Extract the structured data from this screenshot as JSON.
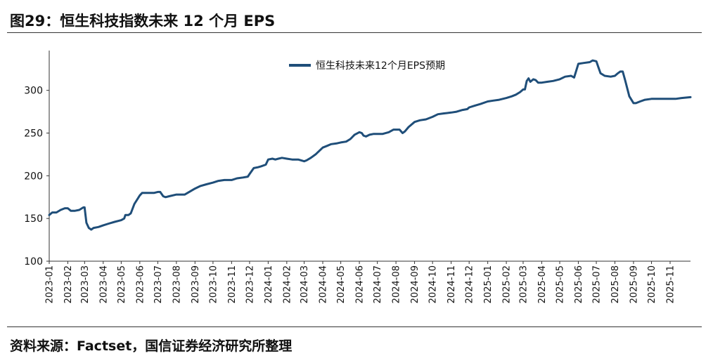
{
  "header": {
    "title": "图29：恒生科技指数未来 12 个月 EPS"
  },
  "footer": {
    "source": "资料来源：Factset，国信证券经济研究所整理"
  },
  "chart_data": {
    "type": "line",
    "title": "",
    "xlabel": "",
    "ylabel": "",
    "ylim": [
      100,
      340
    ],
    "yticks": [
      100,
      150,
      200,
      250,
      300
    ],
    "x_tick_labels": [
      "2023-01",
      "2023-02",
      "2023-03",
      "2023-04",
      "2023-05",
      "2023-06",
      "2023-07",
      "2023-08",
      "2023-09",
      "2023-10",
      "2023-11",
      "2023-12",
      "2024-01",
      "2024-02",
      "2024-03",
      "2024-04",
      "2024-05",
      "2024-06",
      "2024-07",
      "2024-08",
      "2024-09",
      "2024-10",
      "2024-11",
      "2024-12",
      "2025-01",
      "2025-02",
      "2025-03",
      "2025-04",
      "2025-05",
      "2025-06",
      "2025-07",
      "2025-08",
      "2025-09",
      "2025-10",
      "2025-11"
    ],
    "legend_position": "top-center",
    "grid": false,
    "series": [
      {
        "name": "恒生科技未来12个月EPS预期",
        "color": "#1f4e79",
        "points": [
          [
            "2023-01-01",
            154
          ],
          [
            "2023-01-06",
            157
          ],
          [
            "2023-01-13",
            157
          ],
          [
            "2023-01-20",
            160
          ],
          [
            "2023-01-27",
            162
          ],
          [
            "2023-02-01",
            162
          ],
          [
            "2023-02-06",
            159
          ],
          [
            "2023-02-13",
            159
          ],
          [
            "2023-02-20",
            160
          ],
          [
            "2023-02-27",
            163
          ],
          [
            "2023-03-01",
            163
          ],
          [
            "2023-03-04",
            145
          ],
          [
            "2023-03-08",
            139
          ],
          [
            "2023-03-12",
            137
          ],
          [
            "2023-03-16",
            139
          ],
          [
            "2023-03-24",
            140
          ],
          [
            "2023-04-01",
            142
          ],
          [
            "2023-04-10",
            144
          ],
          [
            "2023-04-20",
            146
          ],
          [
            "2023-05-01",
            148
          ],
          [
            "2023-05-06",
            150
          ],
          [
            "2023-05-08",
            154
          ],
          [
            "2023-05-13",
            154
          ],
          [
            "2023-05-17",
            156
          ],
          [
            "2023-05-23",
            167
          ],
          [
            "2023-06-01",
            177
          ],
          [
            "2023-06-05",
            180
          ],
          [
            "2023-06-15",
            180
          ],
          [
            "2023-06-25",
            180
          ],
          [
            "2023-07-01",
            181
          ],
          [
            "2023-07-05",
            181
          ],
          [
            "2023-07-10",
            176
          ],
          [
            "2023-07-14",
            175
          ],
          [
            "2023-07-20",
            176
          ],
          [
            "2023-08-01",
            178
          ],
          [
            "2023-08-15",
            178
          ],
          [
            "2023-09-01",
            185
          ],
          [
            "2023-09-10",
            188
          ],
          [
            "2023-09-20",
            190
          ],
          [
            "2023-10-01",
            192
          ],
          [
            "2023-10-10",
            194
          ],
          [
            "2023-10-20",
            195
          ],
          [
            "2023-11-01",
            195
          ],
          [
            "2023-11-10",
            197
          ],
          [
            "2023-11-20",
            198
          ],
          [
            "2023-11-28",
            199
          ],
          [
            "2023-12-01",
            202
          ],
          [
            "2023-12-08",
            209
          ],
          [
            "2023-12-15",
            210
          ],
          [
            "2023-12-20",
            211
          ],
          [
            "2023-12-28",
            213
          ],
          [
            "2024-01-01",
            219
          ],
          [
            "2024-01-08",
            220
          ],
          [
            "2024-01-13",
            219
          ],
          [
            "2024-01-18",
            220
          ],
          [
            "2024-01-24",
            221
          ],
          [
            "2024-02-01",
            220
          ],
          [
            "2024-02-10",
            219
          ],
          [
            "2024-02-20",
            219
          ],
          [
            "2024-03-01",
            217
          ],
          [
            "2024-03-05",
            218
          ],
          [
            "2024-03-12",
            221
          ],
          [
            "2024-03-20",
            225
          ],
          [
            "2024-04-01",
            233
          ],
          [
            "2024-04-08",
            235
          ],
          [
            "2024-04-15",
            237
          ],
          [
            "2024-04-25",
            238
          ],
          [
            "2024-05-01",
            239
          ],
          [
            "2024-05-10",
            240
          ],
          [
            "2024-05-17",
            243
          ],
          [
            "2024-05-24",
            248
          ],
          [
            "2024-06-01",
            251
          ],
          [
            "2024-06-05",
            250
          ],
          [
            "2024-06-08",
            247
          ],
          [
            "2024-06-12",
            246
          ],
          [
            "2024-06-18",
            248
          ],
          [
            "2024-06-25",
            249
          ],
          [
            "2024-07-01",
            249
          ],
          [
            "2024-07-10",
            249
          ],
          [
            "2024-07-20",
            251
          ],
          [
            "2024-07-28",
            254
          ],
          [
            "2024-08-01",
            254
          ],
          [
            "2024-08-07",
            254
          ],
          [
            "2024-08-12",
            250
          ],
          [
            "2024-08-16",
            252
          ],
          [
            "2024-08-22",
            257
          ],
          [
            "2024-09-01",
            263
          ],
          [
            "2024-09-10",
            265
          ],
          [
            "2024-09-20",
            266
          ],
          [
            "2024-10-01",
            269
          ],
          [
            "2024-10-10",
            272
          ],
          [
            "2024-10-20",
            273
          ],
          [
            "2024-11-01",
            274
          ],
          [
            "2024-11-10",
            275
          ],
          [
            "2024-11-20",
            277
          ],
          [
            "2024-11-28",
            278
          ],
          [
            "2024-12-01",
            280
          ],
          [
            "2024-12-10",
            282
          ],
          [
            "2024-12-20",
            284
          ],
          [
            "2025-01-01",
            287
          ],
          [
            "2025-01-10",
            288
          ],
          [
            "2025-01-20",
            289
          ],
          [
            "2025-02-01",
            291
          ],
          [
            "2025-02-10",
            293
          ],
          [
            "2025-02-17",
            295
          ],
          [
            "2025-02-24",
            298
          ],
          [
            "2025-03-01",
            301
          ],
          [
            "2025-03-04",
            301
          ],
          [
            "2025-03-07",
            311
          ],
          [
            "2025-03-10",
            314
          ],
          [
            "2025-03-13",
            310
          ],
          [
            "2025-03-18",
            313
          ],
          [
            "2025-03-22",
            312
          ],
          [
            "2025-03-26",
            309
          ],
          [
            "2025-04-01",
            309
          ],
          [
            "2025-04-10",
            310
          ],
          [
            "2025-04-20",
            311
          ],
          [
            "2025-05-01",
            313
          ],
          [
            "2025-05-10",
            316
          ],
          [
            "2025-05-20",
            317
          ],
          [
            "2025-05-25",
            315
          ],
          [
            "2025-06-01",
            331
          ],
          [
            "2025-06-10",
            332
          ],
          [
            "2025-06-20",
            333
          ],
          [
            "2025-06-25",
            335
          ],
          [
            "2025-07-01",
            334
          ],
          [
            "2025-07-04",
            328
          ],
          [
            "2025-07-08",
            320
          ],
          [
            "2025-07-15",
            317
          ],
          [
            "2025-07-25",
            316
          ],
          [
            "2025-08-01",
            317
          ],
          [
            "2025-08-06",
            320
          ],
          [
            "2025-08-10",
            322
          ],
          [
            "2025-08-14",
            322
          ],
          [
            "2025-08-18",
            312
          ],
          [
            "2025-08-25",
            293
          ],
          [
            "2025-09-01",
            285
          ],
          [
            "2025-09-05",
            285
          ],
          [
            "2025-09-12",
            287
          ],
          [
            "2025-09-20",
            289
          ],
          [
            "2025-10-01",
            290
          ],
          [
            "2025-10-10",
            290
          ],
          [
            "2025-10-20",
            290
          ],
          [
            "2025-11-01",
            290
          ],
          [
            "2025-11-10",
            290
          ],
          [
            "2025-11-20",
            291
          ],
          [
            "2025-12-05",
            292
          ]
        ]
      }
    ]
  }
}
